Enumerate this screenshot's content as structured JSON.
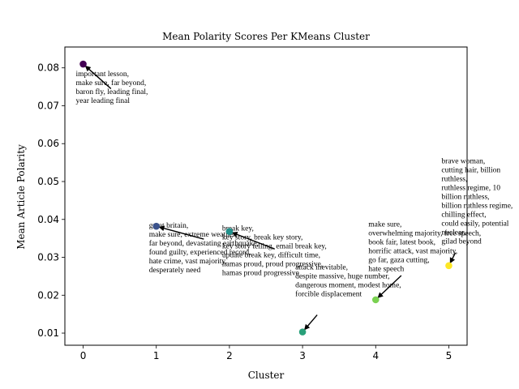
{
  "chart_data": {
    "type": "scatter",
    "title": "Mean Polarity Scores Per KMeans Cluster",
    "xlabel": "Cluster",
    "ylabel": "Mean Article Polarity",
    "xlim": [
      -0.25,
      5.25
    ],
    "ylim": [
      0.0068,
      0.0855
    ],
    "x_ticks": [
      0,
      1,
      2,
      3,
      4,
      5
    ],
    "x_tick_labels": [
      "0",
      "1",
      "2",
      "3",
      "4",
      "5"
    ],
    "y_ticks": [
      0.01,
      0.02,
      0.03,
      0.04,
      0.05,
      0.06,
      0.07,
      0.08
    ],
    "y_tick_labels": [
      "0.01",
      "0.02",
      "0.03",
      "0.04",
      "0.05",
      "0.06",
      "0.07",
      "0.08"
    ],
    "grid": false,
    "points": [
      {
        "cluster": 0,
        "value": 0.081,
        "color": "#440154"
      },
      {
        "cluster": 1,
        "value": 0.0382,
        "color": "#3b528b"
      },
      {
        "cluster": 2,
        "value": 0.0368,
        "color": "#21918c"
      },
      {
        "cluster": 3,
        "value": 0.0103,
        "color": "#29a07a"
      },
      {
        "cluster": 4,
        "value": 0.0188,
        "color": "#7ad151"
      },
      {
        "cluster": 5,
        "value": 0.0278,
        "color": "#fde725"
      }
    ],
    "annotations": [
      {
        "cluster": 0,
        "text_x": -0.1,
        "text_y": 0.0795,
        "arrow_from": [
          0.38,
          0.0745
        ],
        "lines": [
          "important lesson,",
          "make sure, far beyond,",
          "baron fly, leading final,",
          "year leading final"
        ]
      },
      {
        "cluster": 1,
        "text_x": 0.9,
        "text_y": 0.0395,
        "arrow_from": [
          1.65,
          0.0348
        ],
        "lines": [
          "great britain,",
          "make sure, extreme weather,",
          "far beyond, devastating earthquake,",
          "found guilty, experienced record,",
          "hate crime, vast majority,",
          "desperately need"
        ]
      },
      {
        "cluster": 2,
        "text_x": 1.9,
        "text_y": 0.0388,
        "arrow_from": [
          2.62,
          0.0322
        ],
        "lines": [
          "break key,",
          "key story, break key story,",
          "key story telling, email break key,",
          "update break key, difficult time,",
          "hamas proud, proud progressive,",
          "hamas proud progressive"
        ]
      },
      {
        "cluster": 3,
        "text_x": 2.9,
        "text_y": 0.0285,
        "arrow_from": [
          3.2,
          0.0148
        ],
        "lines": [
          "attack inevitable,",
          "despite massive, huge number,",
          "dangerous moment, modest home,",
          "forcible displacement"
        ]
      },
      {
        "cluster": 4,
        "text_x": 3.9,
        "text_y": 0.0398,
        "arrow_from": [
          4.35,
          0.0252
        ],
        "lines": [
          "make sure,",
          "overwhelming majority, free speech,",
          "book fair, latest book,",
          "horrific attack, vast majority,",
          "go far, gaza cutting,",
          "hate speech"
        ]
      },
      {
        "cluster": 5,
        "text_x": 4.9,
        "text_y": 0.0565,
        "arrow_from": [
          5.09,
          0.0312
        ],
        "lines": [
          "brave woman,",
          "cutting hair, billion",
          "ruthless,",
          "ruthless regime, 10",
          "billion ruthless,",
          "billion ruthless regime,",
          "chilling effect,",
          "could easily, potential",
          "nuclear,",
          "gilad beyond"
        ]
      }
    ]
  }
}
